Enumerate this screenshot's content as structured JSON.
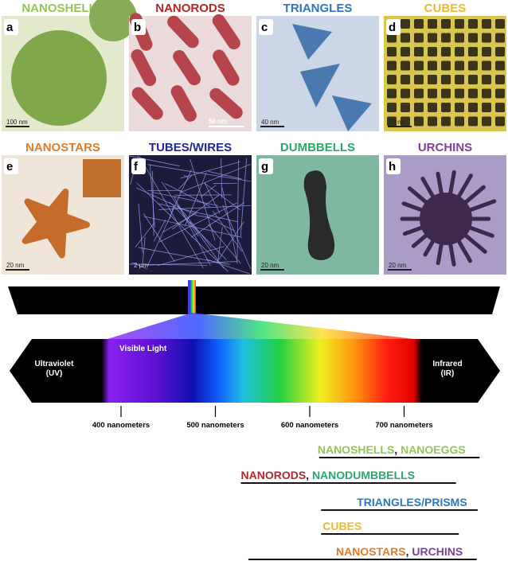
{
  "panels": [
    {
      "letter": "a",
      "title": "NANOSHELLS",
      "title_color": "#8fc856",
      "scale_bar": "100 nm"
    },
    {
      "letter": "b",
      "title": "NANORODS",
      "title_color": "#b3262b",
      "scale_bar": "50 nm"
    },
    {
      "letter": "c",
      "title": "TRIANGLES",
      "title_color": "#2b78be",
      "scale_bar": "40 nm"
    },
    {
      "letter": "d",
      "title": "CUBES",
      "title_color": "#f2b829",
      "scale_bar": "50 nm"
    },
    {
      "letter": "e",
      "title": "NANOSTARS",
      "title_color": "#e07b2a",
      "scale_bar": "20 nm"
    },
    {
      "letter": "f",
      "title": "TUBES/WIRES",
      "title_color": "#1f2a8a",
      "scale_bar": "2 µm"
    },
    {
      "letter": "g",
      "title": "DUMBBELLS",
      "title_color": "#2aa86a",
      "scale_bar": "20 nm"
    },
    {
      "letter": "h",
      "title": "URCHINS",
      "title_color": "#7b3f9e",
      "scale_bar": "20 nm"
    }
  ],
  "spectrum": {
    "uv": [
      "Ultraviolet",
      "(UV)"
    ],
    "visible": "Visible Light",
    "ir": [
      "Infrared",
      "(IR)"
    ],
    "ticks": [
      {
        "value": 400,
        "label": "400 nanometers"
      },
      {
        "value": 500,
        "label": "500 nanometers"
      },
      {
        "value": 600,
        "label": "600 nanometers"
      },
      {
        "value": 700,
        "label": "700 nanometers"
      }
    ]
  },
  "ranges": [
    {
      "parts": [
        {
          "text": "NANOSHELLS",
          "color": "#8fc856"
        },
        {
          "text": ", ",
          "color": "#222222"
        },
        {
          "text": "NANOEGGS",
          "color": "#8fc856"
        }
      ],
      "range": [
        610,
        780
      ]
    },
    {
      "parts": [
        {
          "text": "NANORODS",
          "color": "#b3262b"
        },
        {
          "text": ", ",
          "color": "#222222"
        },
        {
          "text": "NANODUMBBELLS",
          "color": "#2aa86a"
        }
      ],
      "range": [
        527,
        755
      ]
    },
    {
      "parts": [
        {
          "text": "TRIANGLES/PRISMS",
          "color": "#2b78be"
        }
      ],
      "range": [
        612,
        778
      ]
    },
    {
      "parts": [
        {
          "text": "CUBES",
          "color": "#f2b829"
        }
      ],
      "range": [
        612,
        758
      ]
    },
    {
      "parts": [
        {
          "text": "NANOSTARS",
          "color": "#e07b2a"
        },
        {
          "text": ", ",
          "color": "#222222"
        },
        {
          "text": "URCHINS",
          "color": "#7b3f9e"
        }
      ],
      "range": [
        535,
        777
      ]
    }
  ]
}
